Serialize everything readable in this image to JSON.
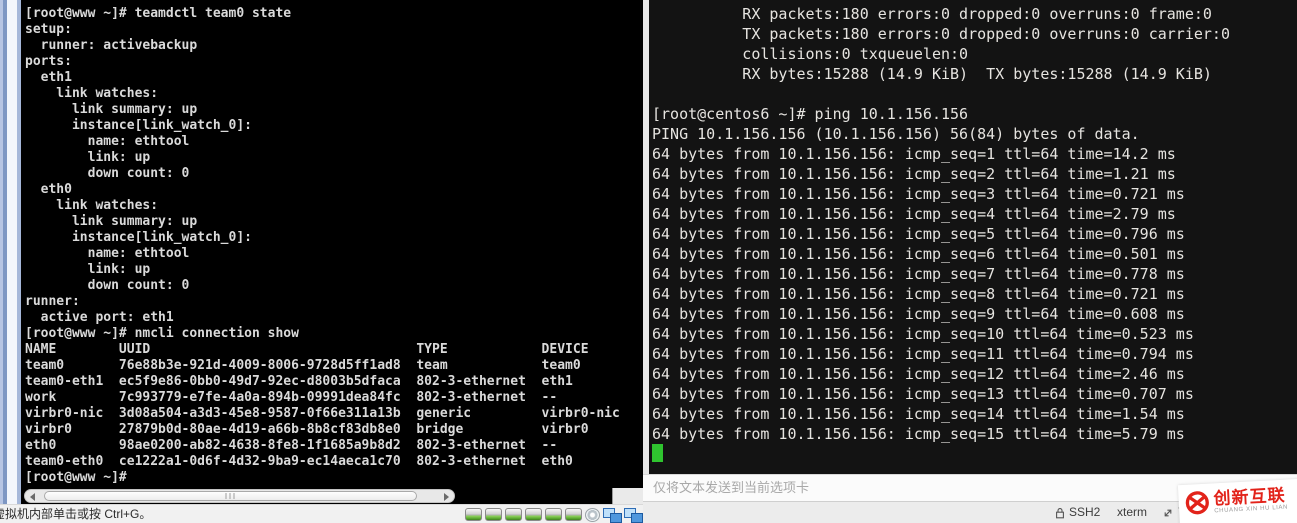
{
  "left_terminal": {
    "lines": [
      "[root@www ~]# teamdctl team0 state",
      "setup:",
      "  runner: activebackup",
      "ports:",
      "  eth1",
      "    link watches:",
      "      link summary: up",
      "      instance[link_watch_0]:",
      "        name: ethtool",
      "        link: up",
      "        down count: 0",
      "  eth0",
      "    link watches:",
      "      link summary: up",
      "      instance[link_watch_0]:",
      "        name: ethtool",
      "        link: up",
      "        down count: 0",
      "runner:",
      "  active port: eth1",
      "[root@www ~]# nmcli connection show",
      "NAME        UUID                                  TYPE            DEVICE",
      "team0       76e88b3e-921d-4009-8006-9728d5ff1ad8  team            team0",
      "team0-eth1  ec5f9e86-0bb0-49d7-92ec-d8003b5dfaca  802-3-ethernet  eth1",
      "work        7c993779-e7fe-4a0a-894b-09991dea84fc  802-3-ethernet  --",
      "virbr0-nic  3d08a504-a3d3-45e8-9587-0f66e311a13b  generic         virbr0-nic",
      "virbr0      27879b0d-80ae-4d19-a66b-8b8cf83db8e0  bridge          virbr0",
      "eth0        98ae0200-ab82-4638-8fe8-1f1685a9b8d2  802-3-ethernet  --",
      "team0-eth0  ce1222a1-0d6f-4d32-9ba9-ec14aeca1c70  802-3-ethernet  eth0",
      "[root@www ~]# "
    ]
  },
  "vmware_bar": {
    "hint": "虚拟机内部单击或按 Ctrl+G。",
    "icons": [
      "hard-disk",
      "hard-disk",
      "hard-disk",
      "hard-disk",
      "hard-disk",
      "hard-disk",
      "cd-drive",
      "network-adapter",
      "network-adapter"
    ]
  },
  "right_terminal": {
    "cursor_color": "#2fc42f",
    "lines": [
      "          RX packets:180 errors:0 dropped:0 overruns:0 frame:0",
      "          TX packets:180 errors:0 dropped:0 overruns:0 carrier:0",
      "          collisions:0 txqueuelen:0",
      "          RX bytes:15288 (14.9 KiB)  TX bytes:15288 (14.9 KiB)",
      "",
      "[root@centos6 ~]# ping 10.1.156.156",
      "PING 10.1.156.156 (10.1.156.156) 56(84) bytes of data.",
      "64 bytes from 10.1.156.156: icmp_seq=1 ttl=64 time=14.2 ms",
      "64 bytes from 10.1.156.156: icmp_seq=2 ttl=64 time=1.21 ms",
      "64 bytes from 10.1.156.156: icmp_seq=3 ttl=64 time=0.721 ms",
      "64 bytes from 10.1.156.156: icmp_seq=4 ttl=64 time=2.79 ms",
      "64 bytes from 10.1.156.156: icmp_seq=5 ttl=64 time=0.796 ms",
      "64 bytes from 10.1.156.156: icmp_seq=6 ttl=64 time=0.501 ms",
      "64 bytes from 10.1.156.156: icmp_seq=7 ttl=64 time=0.778 ms",
      "64 bytes from 10.1.156.156: icmp_seq=8 ttl=64 time=0.721 ms",
      "64 bytes from 10.1.156.156: icmp_seq=9 ttl=64 time=0.608 ms",
      "64 bytes from 10.1.156.156: icmp_seq=10 ttl=64 time=0.523 ms",
      "64 bytes from 10.1.156.156: icmp_seq=11 ttl=64 time=0.794 ms",
      "64 bytes from 10.1.156.156: icmp_seq=12 ttl=64 time=2.46 ms",
      "64 bytes from 10.1.156.156: icmp_seq=13 ttl=64 time=0.707 ms",
      "64 bytes from 10.1.156.156: icmp_seq=14 ttl=64 time=1.54 ms",
      "64 bytes from 10.1.156.156: icmp_seq=15 ttl=64 time=5.79 ms"
    ]
  },
  "chat_bar": {
    "placeholder": "仅将文本发送到当前选项卡"
  },
  "right_status_bar": {
    "encryption": "SSH2",
    "emulation": "xterm",
    "size_indicator": "7"
  },
  "watermark": {
    "brand": "创新互联",
    "subtext": "CHUANG XIN HU LIAN",
    "color": "#e2231a"
  }
}
